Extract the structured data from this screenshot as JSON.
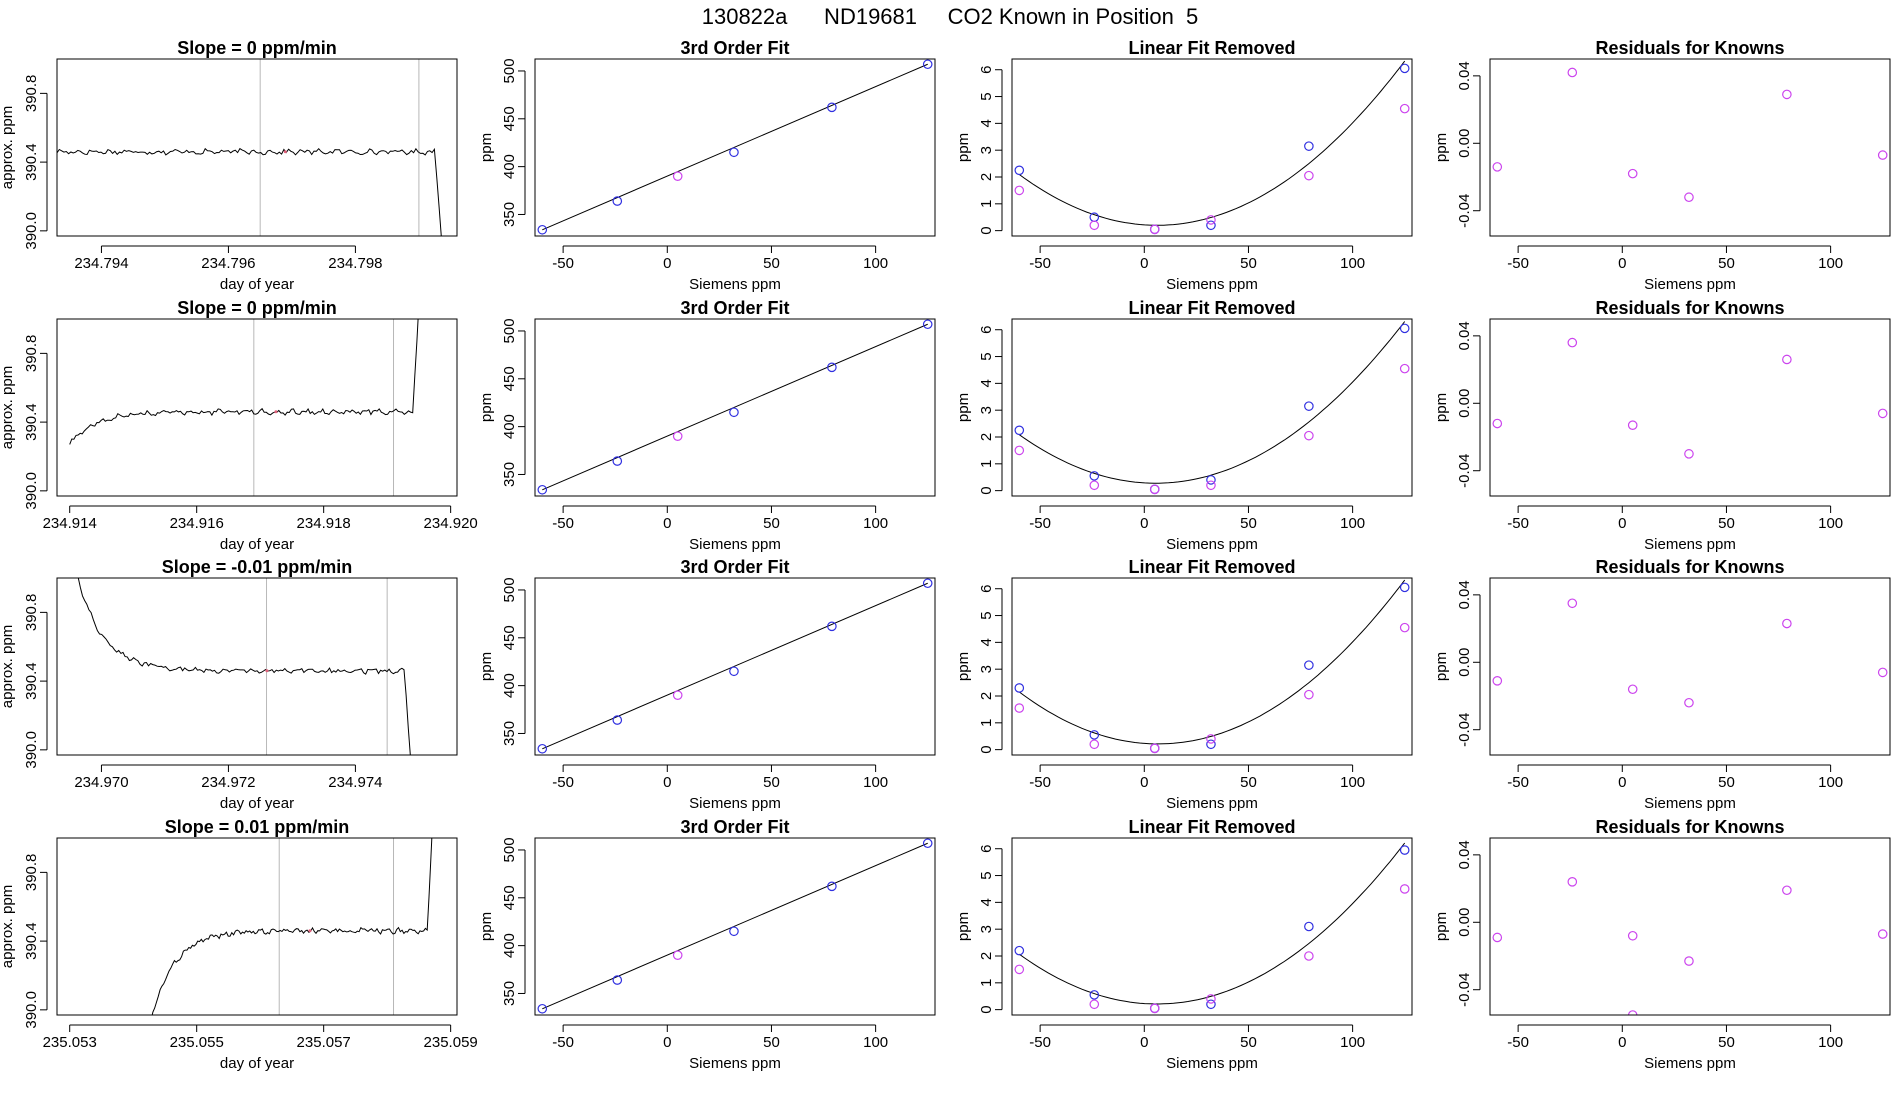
{
  "page": {
    "title": "130822a      ND19681     CO2 Known in Position  5"
  },
  "chart_data": [
    {
      "row": 1,
      "type": "line",
      "title": "Slope =  0  ppm/min",
      "xlabel": "day of year",
      "ylabel": "approx. ppm",
      "xlim": [
        234.7933,
        234.7996
      ],
      "ylim": [
        389.97,
        391.0
      ],
      "xticks": [
        234.794,
        234.796,
        234.798
      ],
      "xtick_labels": [
        "234.794",
        "234.796",
        "234.798"
      ],
      "yticks": [
        390.0,
        390.4,
        390.8
      ],
      "ytick_labels": [
        "390.0",
        "390.4",
        "390.8"
      ],
      "vlines": [
        234.7965,
        234.799
      ],
      "trace": {
        "x_start": 234.7933,
        "x_end": 234.7995,
        "base": 390.46,
        "noise": 0.012,
        "start_mode": "flat",
        "end_mode": "drop"
      }
    },
    {
      "row": 1,
      "type": "scatter",
      "title": "3rd Order Fit",
      "xlabel": "Siemens ppm",
      "ylabel": "ppm",
      "xlim": [
        -63.5,
        128.5
      ],
      "ylim": [
        327.5,
        512.5
      ],
      "xticks": [
        -50,
        0,
        50,
        100
      ],
      "xtick_labels": [
        "-50",
        "0",
        "50",
        "100"
      ],
      "yticks": [
        350,
        400,
        450,
        500
      ],
      "ytick_labels": [
        "350",
        "400",
        "450",
        "500"
      ],
      "series": [
        {
          "color": "#3030e0",
          "x": [
            -60,
            -24,
            32,
            79,
            125
          ],
          "y": [
            334,
            364,
            415,
            462,
            507
          ]
        },
        {
          "color": "#cc44ee",
          "x": [
            5
          ],
          "y": [
            390
          ]
        }
      ],
      "fit_line": {
        "x": [
          -60,
          125
        ],
        "y": [
          334,
          507
        ]
      }
    },
    {
      "row": 1,
      "type": "scatter",
      "title": "Linear Fit Removed",
      "xlabel": "Siemens ppm",
      "ylabel": "ppm",
      "xlim": [
        -63.5,
        128.5
      ],
      "ylim": [
        -0.2,
        6.4
      ],
      "xticks": [
        -50,
        0,
        50,
        100
      ],
      "xtick_labels": [
        "-50",
        "0",
        "50",
        "100"
      ],
      "yticks": [
        0,
        1,
        2,
        3,
        4,
        5,
        6
      ],
      "ytick_labels": [
        "0",
        "1",
        "2",
        "3",
        "4",
        "5",
        "6"
      ],
      "series": [
        {
          "color": "#3030e0",
          "x": [
            -60,
            -24,
            5,
            32,
            79,
            125
          ],
          "y": [
            2.25,
            0.5,
            0.05,
            0.2,
            3.15,
            6.05
          ]
        },
        {
          "color": "#cc44ee",
          "x": [
            -60,
            -24,
            5,
            32,
            79,
            125
          ],
          "y": [
            1.5,
            0.2,
            0.05,
            0.4,
            2.05,
            4.55
          ]
        }
      ],
      "fit_curve": {
        "x": [
          -60,
          -24,
          5,
          32,
          79,
          125
        ],
        "y": [
          2.25,
          0.5,
          0.05,
          0.2,
          3.15,
          6.05
        ]
      }
    },
    {
      "row": 1,
      "type": "scatter",
      "title": "Residuals for Knowns",
      "xlabel": "Siemens ppm",
      "ylabel": "ppm",
      "xlim": [
        -63.5,
        128.5
      ],
      "ylim": [
        -0.055,
        0.05
      ],
      "xticks": [
        -50,
        0,
        50,
        100
      ],
      "xtick_labels": [
        "-50",
        "0",
        "50",
        "100"
      ],
      "yticks": [
        -0.04,
        0.0,
        0.04
      ],
      "ytick_labels": [
        "-0.04",
        "0.00",
        "0.04"
      ],
      "series": [
        {
          "color": "#cc44ee",
          "x": [
            -60,
            -24,
            5,
            32,
            79,
            125
          ],
          "y": [
            -0.014,
            0.042,
            -0.018,
            -0.032,
            0.029,
            -0.007
          ]
        }
      ]
    },
    {
      "row": 2,
      "type": "line",
      "title": "Slope =  0  ppm/min",
      "xlabel": "day of year",
      "ylabel": "approx. ppm",
      "xlim": [
        234.9138,
        234.9201
      ],
      "ylim": [
        389.97,
        391.0
      ],
      "xticks": [
        234.914,
        234.916,
        234.918,
        234.92
      ],
      "xtick_labels": [
        "234.914",
        "234.916",
        "234.918",
        "234.920"
      ],
      "yticks": [
        390.0,
        390.4,
        390.8
      ],
      "ytick_labels": [
        "390.0",
        "390.4",
        "390.8"
      ],
      "vlines": [
        234.9169,
        234.9191
      ],
      "trace": {
        "x_start": 234.914,
        "x_end": 234.9196,
        "base": 390.46,
        "noise": 0.012,
        "start_mode": "rise_from_low",
        "end_mode": "spike"
      }
    },
    {
      "row": 2,
      "type": "scatter",
      "title": "3rd Order Fit",
      "xlabel": "Siemens ppm",
      "ylabel": "ppm",
      "xlim": [
        -63.5,
        128.5
      ],
      "ylim": [
        327.5,
        512.5
      ],
      "xticks": [
        -50,
        0,
        50,
        100
      ],
      "xtick_labels": [
        "-50",
        "0",
        "50",
        "100"
      ],
      "yticks": [
        350,
        400,
        450,
        500
      ],
      "ytick_labels": [
        "350",
        "400",
        "450",
        "500"
      ],
      "series": [
        {
          "color": "#3030e0",
          "x": [
            -60,
            -24,
            32,
            79,
            125
          ],
          "y": [
            334,
            364,
            415,
            462,
            507
          ]
        },
        {
          "color": "#cc44ee",
          "x": [
            5
          ],
          "y": [
            390
          ]
        }
      ],
      "fit_line": {
        "x": [
          -60,
          125
        ],
        "y": [
          334,
          507
        ]
      }
    },
    {
      "row": 2,
      "type": "scatter",
      "title": "Linear Fit Removed",
      "xlabel": "Siemens ppm",
      "ylabel": "ppm",
      "xlim": [
        -63.5,
        128.5
      ],
      "ylim": [
        -0.2,
        6.4
      ],
      "xticks": [
        -50,
        0,
        50,
        100
      ],
      "xtick_labels": [
        "-50",
        "0",
        "50",
        "100"
      ],
      "yticks": [
        0,
        1,
        2,
        3,
        4,
        5,
        6
      ],
      "ytick_labels": [
        "0",
        "1",
        "2",
        "3",
        "4",
        "5",
        "6"
      ],
      "series": [
        {
          "color": "#3030e0",
          "x": [
            -60,
            -24,
            5,
            32,
            79,
            125
          ],
          "y": [
            2.25,
            0.55,
            0.05,
            0.4,
            3.15,
            6.05
          ]
        },
        {
          "color": "#cc44ee",
          "x": [
            -60,
            -24,
            5,
            32,
            79,
            125
          ],
          "y": [
            1.5,
            0.2,
            0.05,
            0.2,
            2.05,
            4.55
          ]
        }
      ],
      "fit_curve": {
        "x": [
          -60,
          -24,
          5,
          32,
          79,
          125
        ],
        "y": [
          2.25,
          0.55,
          0.05,
          0.4,
          3.15,
          6.05
        ]
      }
    },
    {
      "row": 2,
      "type": "scatter",
      "title": "Residuals for Knowns",
      "xlabel": "Siemens ppm",
      "ylabel": "ppm",
      "xlim": [
        -63.5,
        128.5
      ],
      "ylim": [
        -0.055,
        0.05
      ],
      "xticks": [
        -50,
        0,
        50,
        100
      ],
      "xtick_labels": [
        "-50",
        "0",
        "50",
        "100"
      ],
      "yticks": [
        -0.04,
        0.0,
        0.04
      ],
      "ytick_labels": [
        "-0.04",
        "0.00",
        "0.04"
      ],
      "series": [
        {
          "color": "#cc44ee",
          "x": [
            -60,
            -24,
            5,
            32,
            79,
            125
          ],
          "y": [
            -0.012,
            0.036,
            -0.013,
            -0.03,
            0.026,
            -0.006
          ]
        }
      ]
    },
    {
      "row": 3,
      "type": "line",
      "title": "Slope =  -0.01  ppm/min",
      "xlabel": "day of year",
      "ylabel": "approx. ppm",
      "xlim": [
        234.9693,
        234.9756
      ],
      "ylim": [
        389.97,
        391.0
      ],
      "xticks": [
        234.97,
        234.972,
        234.974
      ],
      "xtick_labels": [
        "234.970",
        "234.972",
        "234.974"
      ],
      "yticks": [
        390.0,
        390.4,
        390.8
      ],
      "ytick_labels": [
        "390.0",
        "390.4",
        "390.8"
      ],
      "vlines": [
        234.9726,
        234.9745
      ],
      "trace": {
        "x_start": 234.9693,
        "x_end": 234.975,
        "base": 390.46,
        "noise": 0.012,
        "start_mode": "decay_from_high",
        "end_mode": "drop"
      }
    },
    {
      "row": 3,
      "type": "scatter",
      "title": "3rd Order Fit",
      "xlabel": "Siemens ppm",
      "ylabel": "ppm",
      "xlim": [
        -63.5,
        128.5
      ],
      "ylim": [
        327.5,
        512.5
      ],
      "xticks": [
        -50,
        0,
        50,
        100
      ],
      "xtick_labels": [
        "-50",
        "0",
        "50",
        "100"
      ],
      "yticks": [
        350,
        400,
        450,
        500
      ],
      "ytick_labels": [
        "350",
        "400",
        "450",
        "500"
      ],
      "series": [
        {
          "color": "#3030e0",
          "x": [
            -60,
            -24,
            32,
            79,
            125
          ],
          "y": [
            334,
            364,
            415,
            462,
            507
          ]
        },
        {
          "color": "#cc44ee",
          "x": [
            5
          ],
          "y": [
            390
          ]
        }
      ],
      "fit_line": {
        "x": [
          -60,
          125
        ],
        "y": [
          334,
          507
        ]
      }
    },
    {
      "row": 3,
      "type": "scatter",
      "title": "Linear Fit Removed",
      "xlabel": "Siemens ppm",
      "ylabel": "ppm",
      "xlim": [
        -63.5,
        128.5
      ],
      "ylim": [
        -0.2,
        6.4
      ],
      "xticks": [
        -50,
        0,
        50,
        100
      ],
      "xtick_labels": [
        "-50",
        "0",
        "50",
        "100"
      ],
      "yticks": [
        0,
        1,
        2,
        3,
        4,
        5,
        6
      ],
      "ytick_labels": [
        "0",
        "1",
        "2",
        "3",
        "4",
        "5",
        "6"
      ],
      "series": [
        {
          "color": "#3030e0",
          "x": [
            -60,
            -24,
            5,
            32,
            79,
            125
          ],
          "y": [
            2.3,
            0.55,
            0.05,
            0.2,
            3.15,
            6.05
          ]
        },
        {
          "color": "#cc44ee",
          "x": [
            -60,
            -24,
            5,
            32,
            79,
            125
          ],
          "y": [
            1.55,
            0.2,
            0.05,
            0.4,
            2.05,
            4.55
          ]
        }
      ],
      "fit_curve": {
        "x": [
          -60,
          -24,
          5,
          32,
          79,
          125
        ],
        "y": [
          2.3,
          0.55,
          0.05,
          0.2,
          3.15,
          6.05
        ]
      }
    },
    {
      "row": 3,
      "type": "scatter",
      "title": "Residuals for Knowns",
      "xlabel": "Siemens ppm",
      "ylabel": "ppm",
      "xlim": [
        -63.5,
        128.5
      ],
      "ylim": [
        -0.055,
        0.05
      ],
      "xticks": [
        -50,
        0,
        50,
        100
      ],
      "xtick_labels": [
        "-50",
        "0",
        "50",
        "100"
      ],
      "yticks": [
        -0.04,
        0.0,
        0.04
      ],
      "ytick_labels": [
        "-0.04",
        "0.00",
        "0.04"
      ],
      "series": [
        {
          "color": "#cc44ee",
          "x": [
            -60,
            -24,
            5,
            32,
            79,
            125
          ],
          "y": [
            -0.011,
            0.035,
            -0.016,
            -0.024,
            0.023,
            -0.006
          ]
        }
      ]
    },
    {
      "row": 4,
      "type": "line",
      "title": "Slope =  0.01  ppm/min",
      "xlabel": "day of year",
      "ylabel": "approx. ppm",
      "xlim": [
        235.0528,
        235.0591
      ],
      "ylim": [
        389.97,
        391.0
      ],
      "xticks": [
        235.053,
        235.055,
        235.057,
        235.059
      ],
      "xtick_labels": [
        "235.053",
        "235.055",
        "235.057",
        "235.059"
      ],
      "yticks": [
        390.0,
        390.4,
        390.8
      ],
      "ytick_labels": [
        "390.0",
        "390.4",
        "390.8"
      ],
      "vlines": [
        235.0563,
        235.0581
      ],
      "trace": {
        "x_start": 235.054,
        "x_end": 235.0588,
        "base": 390.46,
        "noise": 0.012,
        "start_mode": "rise_from_below",
        "end_mode": "spike"
      }
    },
    {
      "row": 4,
      "type": "scatter",
      "title": "3rd Order Fit",
      "xlabel": "Siemens ppm",
      "ylabel": "ppm",
      "xlim": [
        -63.5,
        128.5
      ],
      "ylim": [
        327.5,
        512.5
      ],
      "xticks": [
        -50,
        0,
        50,
        100
      ],
      "xtick_labels": [
        "-50",
        "0",
        "50",
        "100"
      ],
      "yticks": [
        350,
        400,
        450,
        500
      ],
      "ytick_labels": [
        "350",
        "400",
        "450",
        "500"
      ],
      "series": [
        {
          "color": "#3030e0",
          "x": [
            -60,
            -24,
            32,
            79,
            125
          ],
          "y": [
            334,
            364,
            415,
            462,
            507
          ]
        },
        {
          "color": "#cc44ee",
          "x": [
            5
          ],
          "y": [
            390
          ]
        }
      ],
      "fit_line": {
        "x": [
          -60,
          125
        ],
        "y": [
          334,
          507
        ]
      }
    },
    {
      "row": 4,
      "type": "scatter",
      "title": "Linear Fit Removed",
      "xlabel": "Siemens ppm",
      "ylabel": "ppm",
      "xlim": [
        -63.5,
        128.5
      ],
      "ylim": [
        -0.2,
        6.4
      ],
      "xticks": [
        -50,
        0,
        50,
        100
      ],
      "xtick_labels": [
        "-50",
        "0",
        "50",
        "100"
      ],
      "yticks": [
        0,
        1,
        2,
        3,
        4,
        5,
        6
      ],
      "ytick_labels": [
        "0",
        "1",
        "2",
        "3",
        "4",
        "5",
        "6"
      ],
      "series": [
        {
          "color": "#3030e0",
          "x": [
            -60,
            -24,
            5,
            32,
            79,
            125
          ],
          "y": [
            2.2,
            0.55,
            0.05,
            0.2,
            3.1,
            5.95
          ]
        },
        {
          "color": "#cc44ee",
          "x": [
            -60,
            -24,
            5,
            32,
            79,
            125
          ],
          "y": [
            1.5,
            0.2,
            0.05,
            0.4,
            2.0,
            4.5
          ]
        }
      ],
      "fit_curve": {
        "x": [
          -60,
          -24,
          5,
          32,
          79,
          125
        ],
        "y": [
          2.2,
          0.55,
          0.05,
          0.2,
          3.1,
          5.95
        ]
      }
    },
    {
      "row": 4,
      "type": "scatter",
      "title": "Residuals for Knowns",
      "xlabel": "Siemens ppm",
      "ylabel": "ppm",
      "xlim": [
        -63.5,
        128.5
      ],
      "ylim": [
        -0.055,
        0.05
      ],
      "xticks": [
        -50,
        0,
        50,
        100
      ],
      "xtick_labels": [
        "-50",
        "0",
        "50",
        "100"
      ],
      "yticks": [
        -0.04,
        0.0,
        0.04
      ],
      "ytick_labels": [
        "-0.04",
        "0.00",
        "0.04"
      ],
      "series": [
        {
          "color": "#cc44ee",
          "x": [
            -60,
            -24,
            5,
            32,
            79,
            125
          ],
          "y": [
            -0.009,
            0.024,
            -0.008,
            -0.023,
            0.019,
            -0.007
          ]
        },
        {
          "color": "#cc44ee",
          "x": [
            5
          ],
          "y": [
            -0.055
          ]
        }
      ]
    }
  ]
}
